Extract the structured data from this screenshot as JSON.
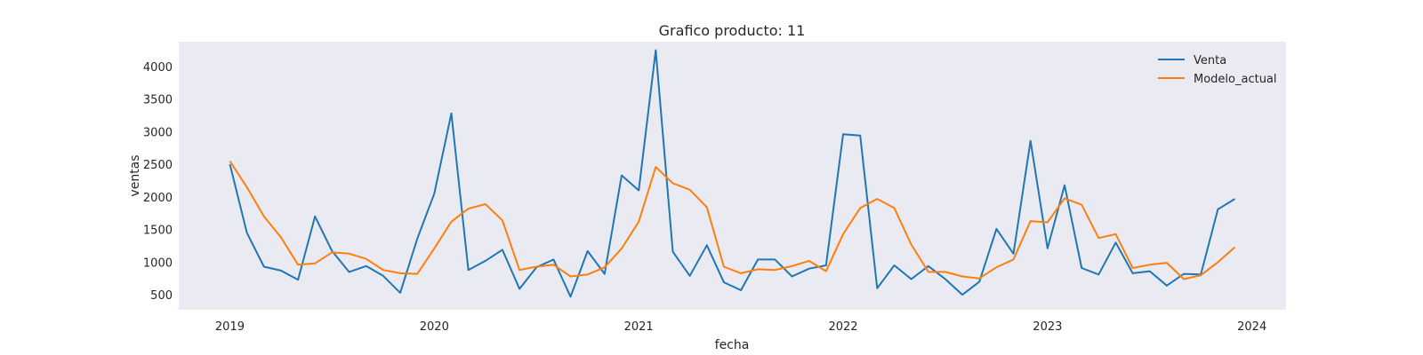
{
  "chart_data": {
    "type": "line",
    "title": "Grafico producto: 11",
    "xlabel": "fecha",
    "ylabel": "ventas",
    "x_start": "2019-01",
    "x_ticks": [
      "2019",
      "2020",
      "2021",
      "2022",
      "2023",
      "2024"
    ],
    "y_ticks": [
      500,
      1000,
      1500,
      2000,
      2500,
      3000,
      3500,
      4000
    ],
    "xlim": [
      "2018-10",
      "2024-03"
    ],
    "ylim": [
      270,
      4380
    ],
    "grid": false,
    "background": "#eaeaf2",
    "legend_position": "top-right",
    "series": [
      {
        "name": "Venta",
        "color": "#1f77b4",
        "values": [
          2500,
          1450,
          930,
          870,
          730,
          1700,
          1170,
          850,
          940,
          790,
          530,
          1360,
          2050,
          3280,
          880,
          1020,
          1190,
          590,
          920,
          1040,
          470,
          1170,
          820,
          2330,
          2100,
          4250,
          1160,
          790,
          1260,
          690,
          570,
          1040,
          1040,
          780,
          900,
          950,
          2960,
          2940,
          600,
          950,
          740,
          940,
          740,
          500,
          700,
          1510,
          1130,
          2860,
          1210,
          2180,
          910,
          810,
          1300,
          830,
          860,
          640,
          820,
          810,
          1810,
          1970
        ]
      },
      {
        "name": "Modelo_actual",
        "color": "#ff7f0e",
        "values": [
          2550,
          2150,
          1700,
          1380,
          960,
          980,
          1150,
          1130,
          1050,
          880,
          830,
          820,
          1210,
          1620,
          1820,
          1890,
          1640,
          880,
          930,
          960,
          780,
          810,
          920,
          1210,
          1620,
          2460,
          2210,
          2110,
          1840,
          930,
          830,
          890,
          880,
          940,
          1020,
          860,
          1430,
          1830,
          1970,
          1830,
          1270,
          850,
          850,
          780,
          750,
          920,
          1040,
          1630,
          1610,
          1980,
          1880,
          1370,
          1430,
          910,
          960,
          990,
          740,
          800,
          1000,
          1230
        ]
      }
    ]
  }
}
